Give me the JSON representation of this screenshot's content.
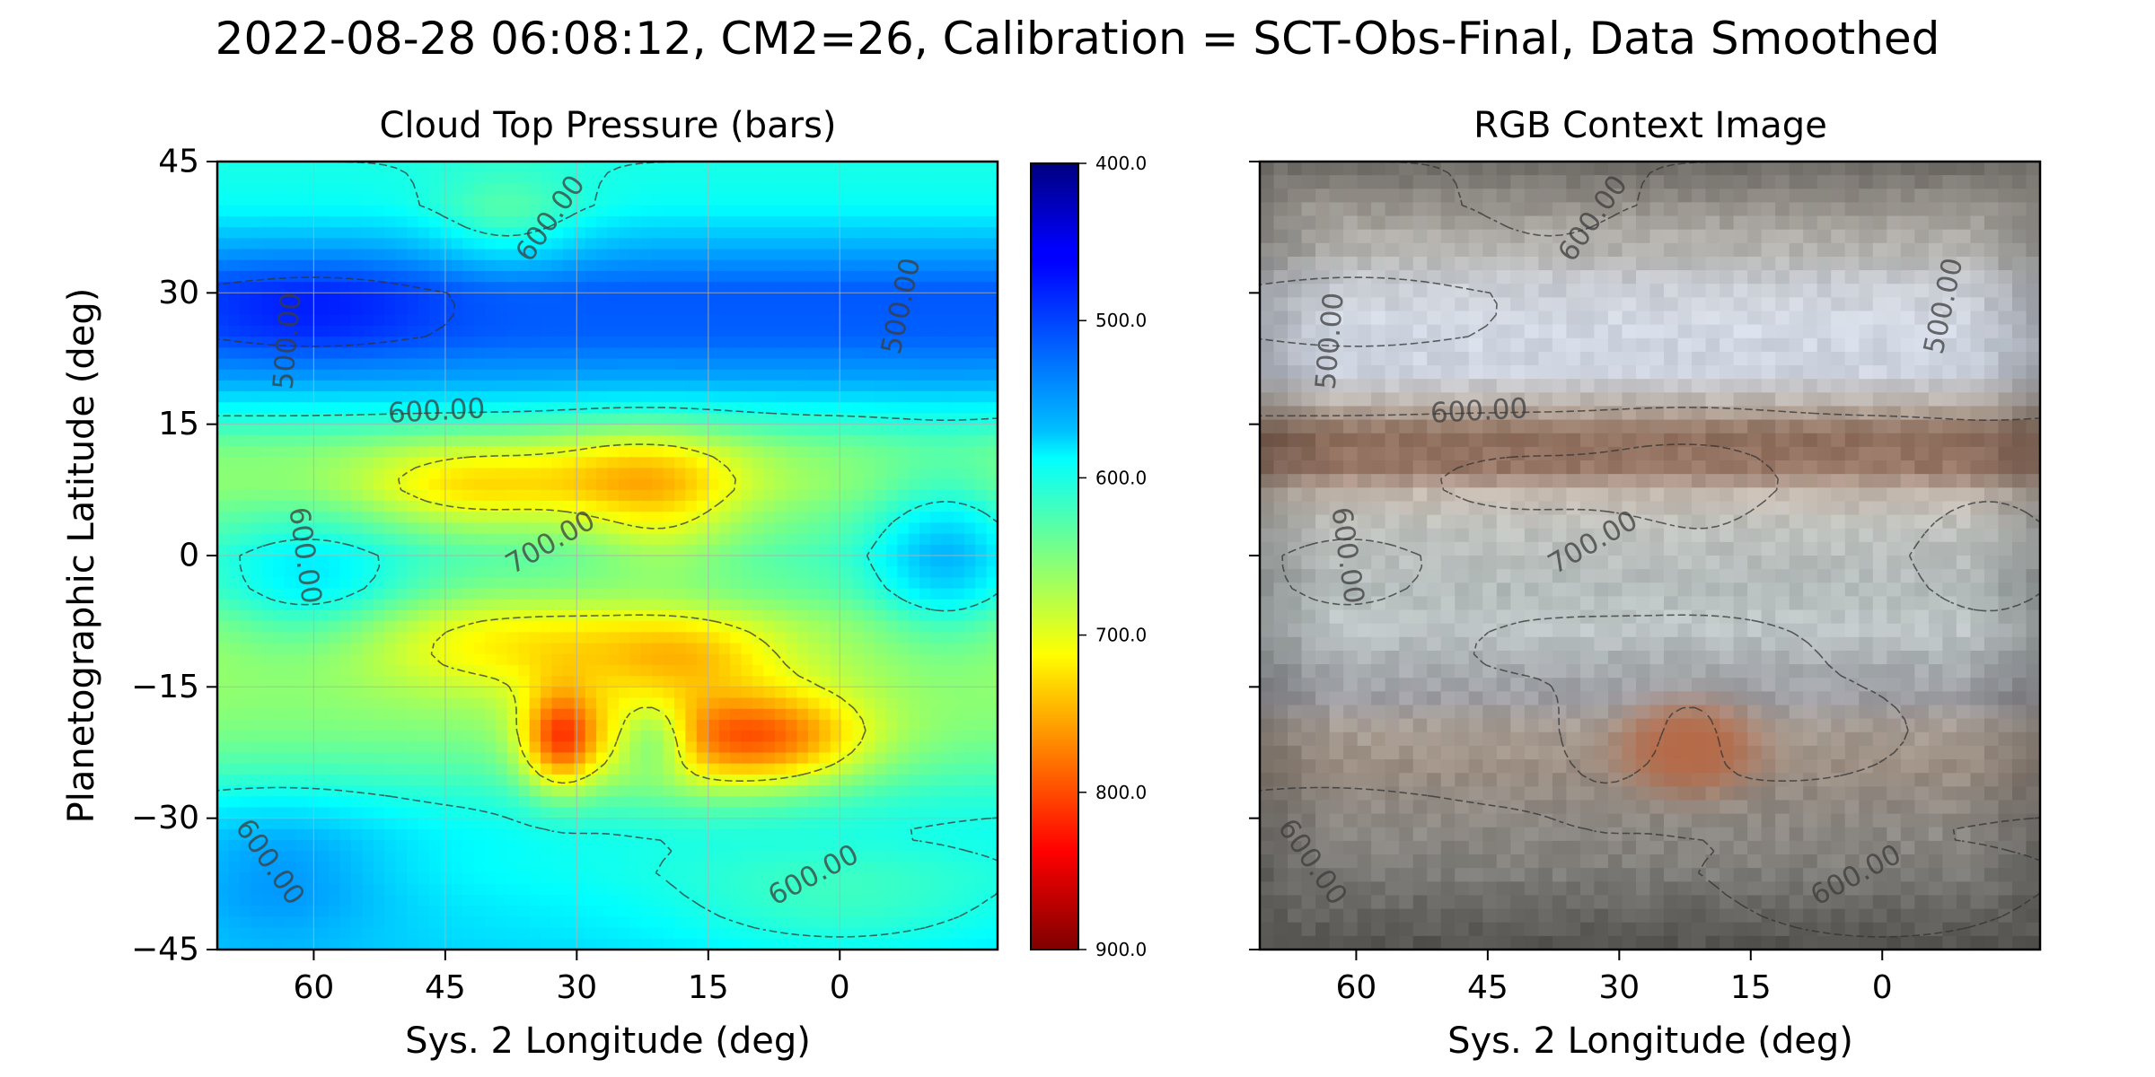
{
  "figure": {
    "title": "2022-08-28 06:08:12, CM2=26, Calibration = SCT-Obs-Final, Data Smoothed"
  },
  "chart_data": [
    {
      "type": "heatmap",
      "title": "Cloud Top Pressure (bars)",
      "xlabel": "Sys. 2 Longitude (deg)",
      "ylabel": "Planetographic Latitude (deg)",
      "xlim": [
        71,
        -18
      ],
      "ylim": [
        -45,
        45
      ],
      "x_ticks": [
        "60",
        "45",
        "30",
        "15",
        "0"
      ],
      "x_tick_values": [
        60,
        45,
        30,
        15,
        0
      ],
      "y_ticks": [
        "45",
        "30",
        "15",
        "0",
        "−15",
        "−30",
        "−45"
      ],
      "y_tick_values": [
        45,
        30,
        15,
        0,
        -15,
        -30,
        -45
      ],
      "grid": true,
      "colormap": "jet_r",
      "colorbar": {
        "min": 400.0,
        "max": 900.0,
        "tick_labels": [
          "400.0",
          "500.0",
          "600.0",
          "700.0",
          "800.0",
          "900.0"
        ],
        "tick_values": [
          400,
          500,
          600,
          700,
          800,
          900
        ]
      },
      "bands": [
        {
          "lat": 45,
          "value": 600
        },
        {
          "lat": 40,
          "value": 590
        },
        {
          "lat": 35,
          "value": 545
        },
        {
          "lat": 30,
          "value": 505
        },
        {
          "lat": 25,
          "value": 510
        },
        {
          "lat": 20,
          "value": 545
        },
        {
          "lat": 16,
          "value": 600
        },
        {
          "lat": 12,
          "value": 650
        },
        {
          "lat": 8,
          "value": 660
        },
        {
          "lat": 4,
          "value": 640
        },
        {
          "lat": 0,
          "value": 625
        },
        {
          "lat": -4,
          "value": 635
        },
        {
          "lat": -8,
          "value": 660
        },
        {
          "lat": -12,
          "value": 665
        },
        {
          "lat": -16,
          "value": 660
        },
        {
          "lat": -20,
          "value": 650
        },
        {
          "lat": -24,
          "value": 630
        },
        {
          "lat": -28,
          "value": 605
        },
        {
          "lat": -32,
          "value": 590
        },
        {
          "lat": -36,
          "value": 590
        },
        {
          "lat": -40,
          "value": 580
        },
        {
          "lat": -45,
          "value": 570
        }
      ],
      "features": [
        {
          "lon": 42,
          "lat": 8,
          "sx": 9,
          "sy": 3.5,
          "amp": 70
        },
        {
          "lon": 22,
          "lat": 9,
          "sx": 8,
          "sy": 4,
          "amp": 85
        },
        {
          "lon": 20,
          "lat": 2,
          "sx": 6,
          "sy": 4,
          "amp": 35
        },
        {
          "lon": 35,
          "lat": -10,
          "sx": 15,
          "sy": 4,
          "amp": 60
        },
        {
          "lon": 17,
          "lat": -11,
          "sx": 7,
          "sy": 3,
          "amp": 45
        },
        {
          "lon": 32,
          "lat": -21,
          "sx": 3,
          "sy": 4,
          "amp": 140
        },
        {
          "lon": 8,
          "lat": -21,
          "sx": 8,
          "sy": 4,
          "amp": 130
        },
        {
          "lon": 21,
          "lat": -21,
          "sx": 8,
          "sy": 5,
          "amp": 70
        },
        {
          "lon": 21,
          "lat": -21,
          "sx": 3,
          "sy": 3,
          "amp": -90
        },
        {
          "lon": 60,
          "lat": -4,
          "sx": 8,
          "sy": 6,
          "amp": -55
        },
        {
          "lon": -12,
          "lat": 0,
          "sx": 6,
          "sy": 7,
          "amp": -75
        },
        {
          "lon": 38,
          "lat": 38,
          "sx": 6,
          "sy": 4,
          "amp": 45
        },
        {
          "lon": 64,
          "lat": -36,
          "sx": 10,
          "sy": 6,
          "amp": -50
        },
        {
          "lon": 0,
          "lat": -40,
          "sx": 15,
          "sy": 5,
          "amp": 35
        },
        {
          "lon": 60,
          "lat": 28,
          "sx": 10,
          "sy": 4,
          "amp": -30
        }
      ],
      "contour_levels": [
        500,
        600,
        700
      ],
      "contour_labels": [
        {
          "text": "600.00",
          "lon": 33,
          "lat": 38.5,
          "angle": -55
        },
        {
          "text": "500.00",
          "lon": 63,
          "lat": 24.5,
          "angle": -85
        },
        {
          "text": "500.00",
          "lon": -7,
          "lat": 28.5,
          "angle": -78
        },
        {
          "text": "600.00",
          "lon": 46,
          "lat": 16.5,
          "angle": -3
        },
        {
          "text": "600.00",
          "lon": 61,
          "lat": 0,
          "angle": 82
        },
        {
          "text": "700.00",
          "lon": 33,
          "lat": 1.5,
          "angle": -30
        },
        {
          "text": "600.00",
          "lon": 65,
          "lat": -35,
          "angle": 55
        },
        {
          "text": "600.00",
          "lon": 3,
          "lat": -36.5,
          "angle": -28
        }
      ]
    },
    {
      "type": "heatmap",
      "title": "RGB Context Image",
      "xlabel": "Sys. 2 Longitude (deg)",
      "xlim": [
        71,
        -18
      ],
      "ylim": [
        -45,
        45
      ],
      "x_ticks": [
        "60",
        "45",
        "30",
        "15",
        "0"
      ],
      "x_tick_values": [
        60,
        45,
        30,
        15,
        0
      ],
      "y_tick_values": [
        45,
        30,
        15,
        0,
        -15,
        -30,
        -45
      ],
      "grid": false,
      "color_bands": [
        {
          "lat": 45,
          "color": "#8f8a84"
        },
        {
          "lat": 40,
          "color": "#a7a29b"
        },
        {
          "lat": 35,
          "color": "#b2b0ac"
        },
        {
          "lat": 31,
          "color": "#c8ccd3"
        },
        {
          "lat": 26,
          "color": "#d3d9e4"
        },
        {
          "lat": 21,
          "color": "#cdd3df"
        },
        {
          "lat": 17,
          "color": "#b9aea4"
        },
        {
          "lat": 14,
          "color": "#8e6e5c"
        },
        {
          "lat": 10,
          "color": "#9a7868"
        },
        {
          "lat": 7,
          "color": "#c4b9af"
        },
        {
          "lat": 3,
          "color": "#bfc2bf"
        },
        {
          "lat": 0,
          "color": "#b9bfbd"
        },
        {
          "lat": -4,
          "color": "#b4bcbb"
        },
        {
          "lat": -8,
          "color": "#c0c7c8"
        },
        {
          "lat": -12,
          "color": "#aab0b2"
        },
        {
          "lat": -16,
          "color": "#9d9ea4"
        },
        {
          "lat": -20,
          "color": "#a79c92"
        },
        {
          "lat": -24,
          "color": "#9c8e82"
        },
        {
          "lat": -28,
          "color": "#918a83"
        },
        {
          "lat": -32,
          "color": "#8b8782"
        },
        {
          "lat": -36,
          "color": "#7f7d79"
        },
        {
          "lat": -40,
          "color": "#767470"
        },
        {
          "lat": -45,
          "color": "#6f6d69"
        }
      ],
      "great_red_spot": {
        "lon": 22,
        "lat": -22,
        "color": "#b56a48"
      }
    }
  ]
}
